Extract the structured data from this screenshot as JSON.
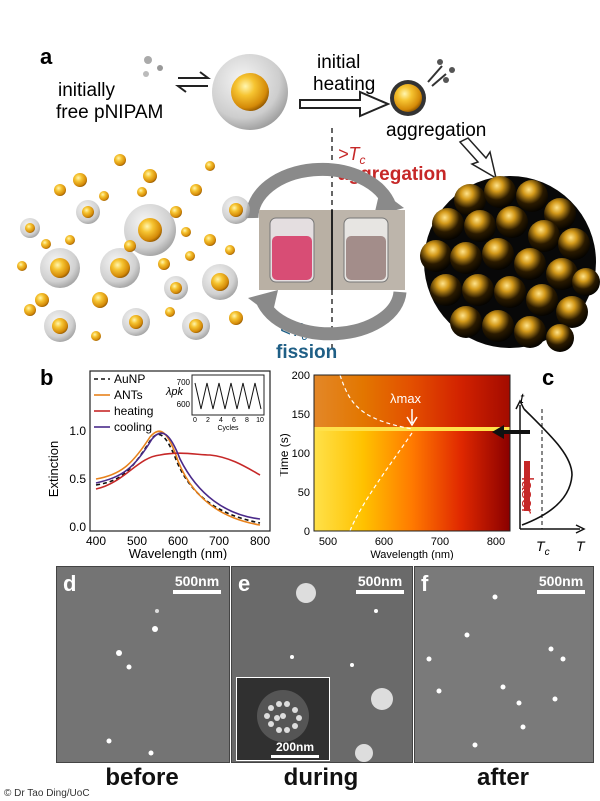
{
  "panel_a": {
    "letter": "a",
    "initially_free": [
      "initially",
      "free pNIPAM"
    ],
    "initial_heating": [
      "initial",
      "heating"
    ],
    "aggregation_top": "aggregation",
    "above_tc_sym": ">T",
    "tc_sub": "c",
    "aggregation_red": "aggregation",
    "below_tc_sym": "<T",
    "fission": "fission"
  },
  "panel_b": {
    "letter": "b",
    "legend": [
      "AuNP",
      "ANTs",
      "heating",
      "cooling"
    ],
    "ylabel": "Extinction",
    "xlabel": "Wavelength (nm)",
    "xticks": [
      "400",
      "500",
      "600",
      "700",
      "800"
    ],
    "yticks": [
      "0.0",
      "0.5",
      "1.0"
    ],
    "inset": {
      "ylabel": "λpk",
      "yticks": [
        "700",
        "600"
      ],
      "xticks": [
        "0",
        "2",
        "4",
        "6",
        "8",
        "10"
      ],
      "xlabel": "Cycles"
    }
  },
  "panel_c": {
    "letter": "c",
    "ylabel": "Time (s)",
    "xlabel": "Wavelength (nm)",
    "yticks": [
      "0",
      "50",
      "100",
      "150",
      "200"
    ],
    "xticks": [
      "500",
      "600",
      "700",
      "800"
    ],
    "lambda_max": "λmax",
    "side_t": "t",
    "side_T": "T",
    "side_tc": "T",
    "laser": "laser"
  },
  "micrographs": [
    {
      "letter": "d",
      "scale": "500nm",
      "caption": "before"
    },
    {
      "letter": "e",
      "scale": "500nm",
      "inset_scale": "200nm",
      "caption": "during"
    },
    {
      "letter": "f",
      "scale": "500nm",
      "caption": "after"
    }
  ],
  "credit": "© Dr Tao Ding/UoC",
  "colors": {
    "gold": "#f2b01e",
    "red": "#c62828",
    "blue": "#1f5f86",
    "orange": "#e8821c",
    "purple": "#4a2a8a"
  }
}
